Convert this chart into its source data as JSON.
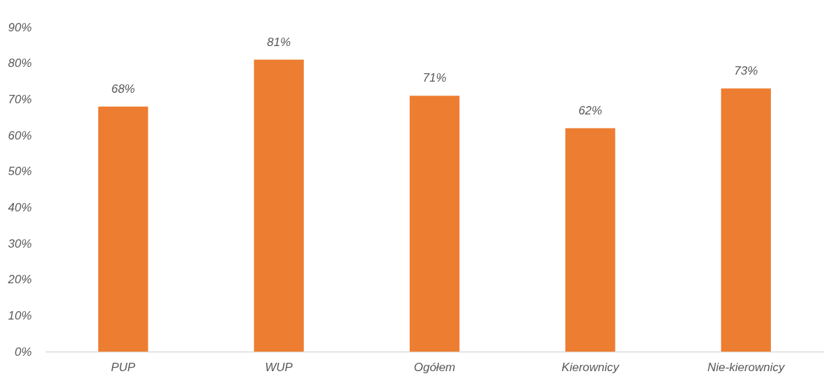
{
  "chart_data": {
    "type": "bar",
    "categories": [
      "PUP",
      "WUP",
      "Ogółem",
      "Kierownicy",
      "Nie-kierownicy"
    ],
    "values": [
      68,
      81,
      71,
      62,
      73
    ],
    "value_labels": [
      "68%",
      "81%",
      "71%",
      "62%",
      "73%"
    ],
    "color": "#ed7d31",
    "ylim": [
      0,
      90
    ],
    "yticks": [
      {
        "value": 0,
        "label": "0%"
      },
      {
        "value": 10,
        "label": "10%"
      },
      {
        "value": 20,
        "label": "20%"
      },
      {
        "value": 30,
        "label": "30%"
      },
      {
        "value": 40,
        "label": "40%"
      },
      {
        "value": 50,
        "label": "50%"
      },
      {
        "value": 60,
        "label": "60%"
      },
      {
        "value": 70,
        "label": "70%"
      },
      {
        "value": 80,
        "label": "80%"
      },
      {
        "value": 90,
        "label": "90%"
      }
    ],
    "grid": false
  }
}
